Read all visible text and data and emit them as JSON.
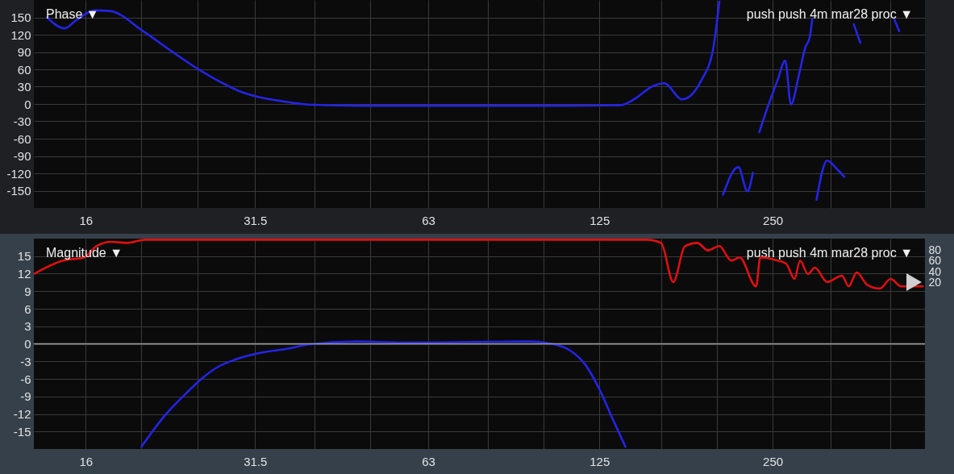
{
  "chart_data": [
    {
      "type": "line",
      "title": "Phase ▼",
      "annotations": [
        "push push 4m mar28 proc ▼"
      ],
      "x": [
        13.7,
        14.7,
        15.4,
        16.6,
        17.6,
        20.2,
        22.5,
        25.4,
        30,
        32,
        35,
        39,
        48,
        78.5,
        109,
        136,
        143,
        155,
        162,
        174,
        188,
        197,
        202,
        203,
        205,
        218,
        226,
        231,
        234,
        237,
        244,
        255,
        263,
        269,
        278,
        285,
        290,
        293,
        295,
        298,
        311,
        323,
        333,
        340,
        346,
        355,
        380,
        407,
        415
      ],
      "series": [
        {
          "color": "#2424e8",
          "values": [
            150,
            131,
            145,
            162,
            161,
            125,
            92,
            57,
            20,
            12,
            5,
            -1,
            -3,
            -3,
            -3,
            -2,
            7,
            31,
            36,
            8,
            41,
            95,
            177,
            null,
            -157,
            -109,
            -151,
            -119,
            null,
            -49,
            -11,
            41,
            75,
            -1,
            52,
            98,
            115,
            147,
            null,
            -166,
            -98,
            -112,
            -126,
            null,
            138,
            106,
            null,
            146,
            126
          ]
        }
      ],
      "log": "x",
      "xlim": [
        13,
        460
      ],
      "xticks": [
        16,
        {
          "value": 20,
          "label": null
        },
        {
          "value": 25,
          "label": null
        },
        31.5,
        {
          "value": 40,
          "label": null
        },
        {
          "value": 50,
          "label": null
        },
        63,
        {
          "value": 80,
          "label": null
        },
        {
          "value": 100,
          "label": null
        },
        125,
        {
          "value": 160,
          "label": null
        },
        {
          "value": 200,
          "label": null
        },
        250,
        {
          "value": 315,
          "label": null
        },
        {
          "value": 400,
          "label": null
        }
      ],
      "ylim": [
        -180,
        180
      ],
      "yticks": [
        -150,
        -120,
        -90,
        -60,
        -30,
        0,
        30,
        60,
        90,
        120,
        150
      ],
      "grid": true
    },
    {
      "type": "line",
      "title": "Magnitude ▼",
      "annotations": [
        "push push 4m mar28 proc ▼"
      ],
      "series": [
        {
          "color": "#2424e8",
          "x": [
            20.0,
            21.9,
            23.9,
            25.5,
            27.1,
            29.1,
            32,
            36.1,
            39,
            47.3,
            57,
            73.8,
            94.6,
            101.8,
            111,
            118,
            125.6,
            132,
            138.7
          ],
          "values": [
            -17.6,
            -12.4,
            -8.5,
            -5.9,
            -4.0,
            -2.7,
            -1.6,
            -0.8,
            -0.1,
            0.4,
            0.2,
            0.3,
            0.4,
            0.1,
            -1.1,
            -3.5,
            -8.2,
            -13,
            -17.6
          ]
        },
        {
          "color": "#e01010",
          "axis": "y2",
          "x": [
            13,
            14.6,
            15.9,
            16.7,
            17.7,
            18.9,
            20.3,
            151,
            160,
            168,
            176,
            185,
            193,
            202,
            212,
            219,
            234,
            238,
            255,
            264,
            273,
            279,
            288,
            296,
            311,
            330,
            339,
            350,
            365,
            384,
            401,
            418,
            456
          ],
          "values": [
            36,
            61,
            67,
            88,
            96,
            94,
            100,
            100,
            94,
            21,
            88,
            94,
            80,
            88,
            61,
            67,
            13,
            67,
            61,
            55,
            27,
            61,
            36,
            48,
            21,
            33,
            13,
            39,
            16,
            9,
            27,
            13,
            13
          ]
        }
      ],
      "log": "x",
      "xlim": [
        13,
        460
      ],
      "xticks": [
        16,
        {
          "value": 20,
          "label": null
        },
        {
          "value": 25,
          "label": null
        },
        31.5,
        {
          "value": 40,
          "label": null
        },
        {
          "value": 50,
          "label": null
        },
        63,
        {
          "value": 80,
          "label": null
        },
        {
          "value": 100,
          "label": null
        },
        125,
        {
          "value": 160,
          "label": null
        },
        {
          "value": 200,
          "label": null
        },
        250,
        {
          "value": 315,
          "label": null
        },
        {
          "value": 400,
          "label": null
        }
      ],
      "ylim": [
        -18,
        18
      ],
      "yticks": [
        -15,
        -12,
        -9,
        -6,
        -3,
        0,
        3,
        6,
        9,
        12,
        15
      ],
      "y2lim": [
        -290,
        102
      ],
      "y2ticks": [
        20,
        40,
        60,
        80
      ],
      "ref_lines": [
        {
          "axis": "y",
          "value": 0,
          "color": "#9a9a9a"
        }
      ],
      "grid": true
    }
  ]
}
